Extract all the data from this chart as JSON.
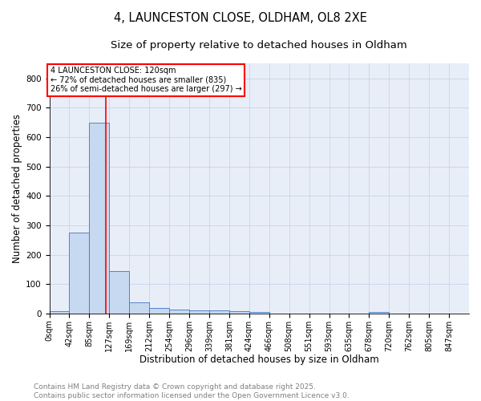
{
  "title1": "4, LAUNCESTON CLOSE, OLDHAM, OL8 2XE",
  "title2": "Size of property relative to detached houses in Oldham",
  "xlabel": "Distribution of detached houses by size in Oldham",
  "ylabel": "Number of detached properties",
  "bar_labels": [
    "0sqm",
    "42sqm",
    "85sqm",
    "127sqm",
    "169sqm",
    "212sqm",
    "254sqm",
    "296sqm",
    "339sqm",
    "381sqm",
    "424sqm",
    "466sqm",
    "508sqm",
    "551sqm",
    "593sqm",
    "635sqm",
    "678sqm",
    "720sqm",
    "762sqm",
    "805sqm",
    "847sqm"
  ],
  "bar_values": [
    7,
    275,
    648,
    143,
    38,
    18,
    12,
    10,
    10,
    8,
    4,
    0,
    0,
    0,
    0,
    0,
    5,
    0,
    0,
    0,
    0
  ],
  "bar_color": "#c6d9f0",
  "bar_edge_color": "#4472c4",
  "red_line_x": 120,
  "bin_width": 42.5,
  "annotation_text": "4 LAUNCESTON CLOSE: 120sqm\n← 72% of detached houses are smaller (835)\n26% of semi-detached houses are larger (297) →",
  "annotation_box_color": "white",
  "annotation_box_edge_color": "red",
  "ylim": [
    0,
    850
  ],
  "yticks": [
    0,
    100,
    200,
    300,
    400,
    500,
    600,
    700,
    800
  ],
  "footer1": "Contains HM Land Registry data © Crown copyright and database right 2025.",
  "footer2": "Contains public sector information licensed under the Open Government Licence v3.0.",
  "grid_color": "#c8d4e8",
  "bg_color": "#e8eef8",
  "title1_fontsize": 10.5,
  "title2_fontsize": 9.5,
  "axis_label_fontsize": 8.5,
  "tick_fontsize": 7.5,
  "footer_fontsize": 6.5
}
